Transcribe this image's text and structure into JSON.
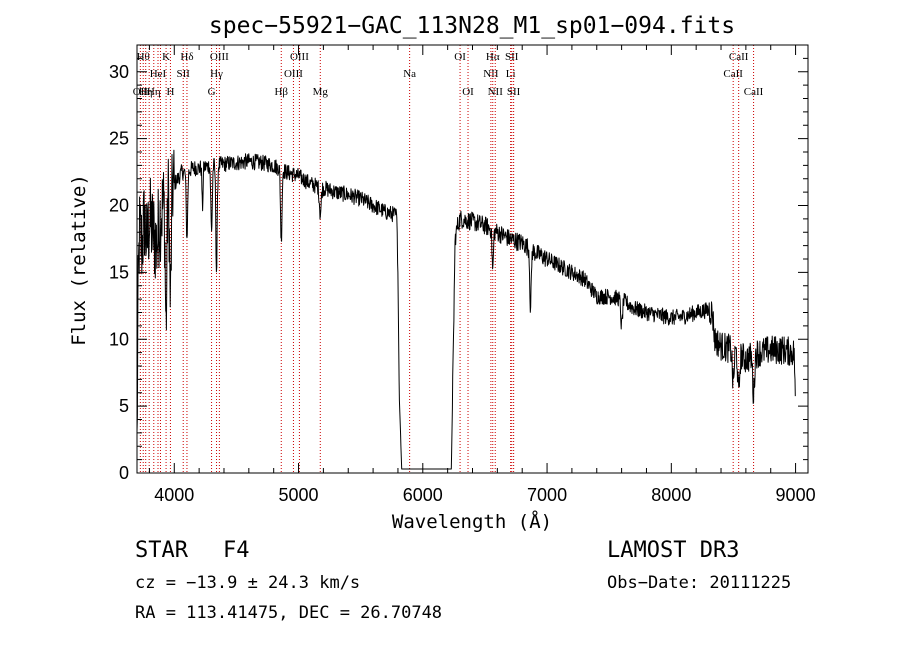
{
  "figure": {
    "classification": "STAR",
    "subclass": "F4",
    "survey": "LAMOST DR3",
    "cz_text": "cz = −13.9 ± 24.3 km/s",
    "obs_date_text": "Obs−Date: 20111225",
    "coords_text": "RA = 113.41475, DEC =  26.70748"
  },
  "chart_data": {
    "type": "line",
    "title": "spec−55921−GAC_113N28_M1_sp01−094.fits",
    "xlabel": "Wavelength (Å)",
    "ylabel": "Flux (relative)",
    "xlim": [
      3700,
      9100
    ],
    "ylim": [
      0,
      32
    ],
    "xticks_major": [
      4000,
      5000,
      6000,
      7000,
      8000,
      9000
    ],
    "yticks_major": [
      0,
      5,
      10,
      15,
      20,
      25,
      30
    ],
    "line_color": "#000000",
    "marker_color": "#cc0000",
    "continuum_anchors": [
      [
        3700,
        2
      ],
      [
        3710,
        14
      ],
      [
        3720,
        18
      ],
      [
        3740,
        17
      ],
      [
        3760,
        19
      ],
      [
        3780,
        17
      ],
      [
        3800,
        19
      ],
      [
        3830,
        18
      ],
      [
        3860,
        17
      ],
      [
        3880,
        19
      ],
      [
        3910,
        20
      ],
      [
        3950,
        21
      ],
      [
        3990,
        21.5
      ],
      [
        4030,
        22
      ],
      [
        4060,
        22.5
      ],
      [
        4100,
        22.5
      ],
      [
        4150,
        22.8
      ],
      [
        4200,
        22.8
      ],
      [
        4300,
        23
      ],
      [
        4400,
        23.1
      ],
      [
        4500,
        23.2
      ],
      [
        4600,
        23.3
      ],
      [
        4700,
        23.2
      ],
      [
        4800,
        23
      ],
      [
        4900,
        22.5
      ],
      [
        5000,
        22.2
      ],
      [
        5100,
        21.6
      ],
      [
        5200,
        21.3
      ],
      [
        5300,
        21
      ],
      [
        5400,
        20.8
      ],
      [
        5500,
        20.5
      ],
      [
        5600,
        20
      ],
      [
        5700,
        19.5
      ],
      [
        5780,
        19.3
      ],
      [
        5790,
        19.2
      ],
      [
        5800,
        15
      ],
      [
        5810,
        6
      ],
      [
        5830,
        0.3
      ],
      [
        6230,
        0.3
      ],
      [
        6260,
        17.5
      ],
      [
        6280,
        18.5
      ],
      [
        6300,
        19
      ],
      [
        6400,
        18.8
      ],
      [
        6500,
        18.5
      ],
      [
        6600,
        18
      ],
      [
        6700,
        17.5
      ],
      [
        6800,
        17.2
      ],
      [
        6900,
        16.5
      ],
      [
        7000,
        16
      ],
      [
        7100,
        15.5
      ],
      [
        7200,
        15
      ],
      [
        7300,
        14.5
      ],
      [
        7400,
        13.2
      ],
      [
        7500,
        13.2
      ],
      [
        7600,
        13
      ],
      [
        7700,
        12.3
      ],
      [
        7800,
        12
      ],
      [
        7900,
        11.8
      ],
      [
        8000,
        11.6
      ],
      [
        8100,
        11.7
      ],
      [
        8200,
        12
      ],
      [
        8300,
        12.2
      ],
      [
        8330,
        12
      ],
      [
        8350,
        10
      ],
      [
        8400,
        9.5
      ],
      [
        8500,
        9.2
      ],
      [
        8600,
        8.5
      ],
      [
        8700,
        9
      ],
      [
        8800,
        9.2
      ],
      [
        8900,
        9.2
      ],
      [
        8990,
        9
      ],
      [
        9000,
        4
      ]
    ],
    "absorption_features": [
      {
        "center": 3934,
        "depth": 9.5,
        "width": 9
      },
      {
        "center": 3969,
        "depth": 8.5,
        "width": 9
      },
      {
        "center": 4102,
        "depth": 5,
        "width": 8
      },
      {
        "center": 4227,
        "depth": 3,
        "width": 6
      },
      {
        "center": 4300,
        "depth": 5,
        "width": 8
      },
      {
        "center": 4340,
        "depth": 8,
        "width": 8
      },
      {
        "center": 4861,
        "depth": 5.5,
        "width": 8
      },
      {
        "center": 5175,
        "depth": 2,
        "width": 10
      },
      {
        "center": 6563,
        "depth": 3,
        "width": 8
      },
      {
        "center": 6867,
        "depth": 4.5,
        "width": 8
      },
      {
        "center": 7600,
        "depth": 2,
        "width": 10
      },
      {
        "center": 8498,
        "depth": 2.5,
        "width": 10
      },
      {
        "center": 8542,
        "depth": 3,
        "width": 10
      },
      {
        "center": 8662,
        "depth": 3,
        "width": 10
      }
    ],
    "line_markers": [
      {
        "wavelength": 3727,
        "label": "OII",
        "row": 2
      },
      {
        "wavelength": 3750,
        "label": "Hθ",
        "row": 0
      },
      {
        "wavelength": 3770,
        "label": "Hη",
        "row": 2
      },
      {
        "wavelength": 3798,
        "label": "",
        "row": 0
      },
      {
        "wavelength": 3835,
        "label": "Hη",
        "row": 2
      },
      {
        "wavelength": 3869,
        "label": "HeI",
        "row": 1
      },
      {
        "wavelength": 3889,
        "label": "",
        "row": 0
      },
      {
        "wavelength": 3934,
        "label": "K",
        "row": 0
      },
      {
        "wavelength": 3969,
        "label": "H",
        "row": 2
      },
      {
        "wavelength": 4072,
        "label": "SII",
        "row": 1
      },
      {
        "wavelength": 4102,
        "label": "Hδ",
        "row": 0
      },
      {
        "wavelength": 4300,
        "label": "G",
        "row": 2
      },
      {
        "wavelength": 4340,
        "label": "Hγ",
        "row": 1
      },
      {
        "wavelength": 4363,
        "label": "OIII",
        "row": 0
      },
      {
        "wavelength": 4861,
        "label": "Hβ",
        "row": 2
      },
      {
        "wavelength": 4959,
        "label": "OIII",
        "row": 1
      },
      {
        "wavelength": 5007,
        "label": "OIII",
        "row": 0
      },
      {
        "wavelength": 5175,
        "label": "Mg",
        "row": 2
      },
      {
        "wavelength": 5894,
        "label": "Na",
        "row": 1
      },
      {
        "wavelength": 6300,
        "label": "OI",
        "row": 0
      },
      {
        "wavelength": 6364,
        "label": "OI",
        "row": 2
      },
      {
        "wavelength": 6548,
        "label": "NII",
        "row": 1
      },
      {
        "wavelength": 6563,
        "label": "Hα",
        "row": 0
      },
      {
        "wavelength": 6583,
        "label": "NII",
        "row": 2
      },
      {
        "wavelength": 6707,
        "label": "Li",
        "row": 1
      },
      {
        "wavelength": 6716,
        "label": "SII",
        "row": 0
      },
      {
        "wavelength": 6731,
        "label": "SII",
        "row": 2
      },
      {
        "wavelength": 8498,
        "label": "CaII",
        "row": 1
      },
      {
        "wavelength": 8542,
        "label": "CaII",
        "row": 0
      },
      {
        "wavelength": 8662,
        "label": "CaII",
        "row": 2
      }
    ]
  }
}
